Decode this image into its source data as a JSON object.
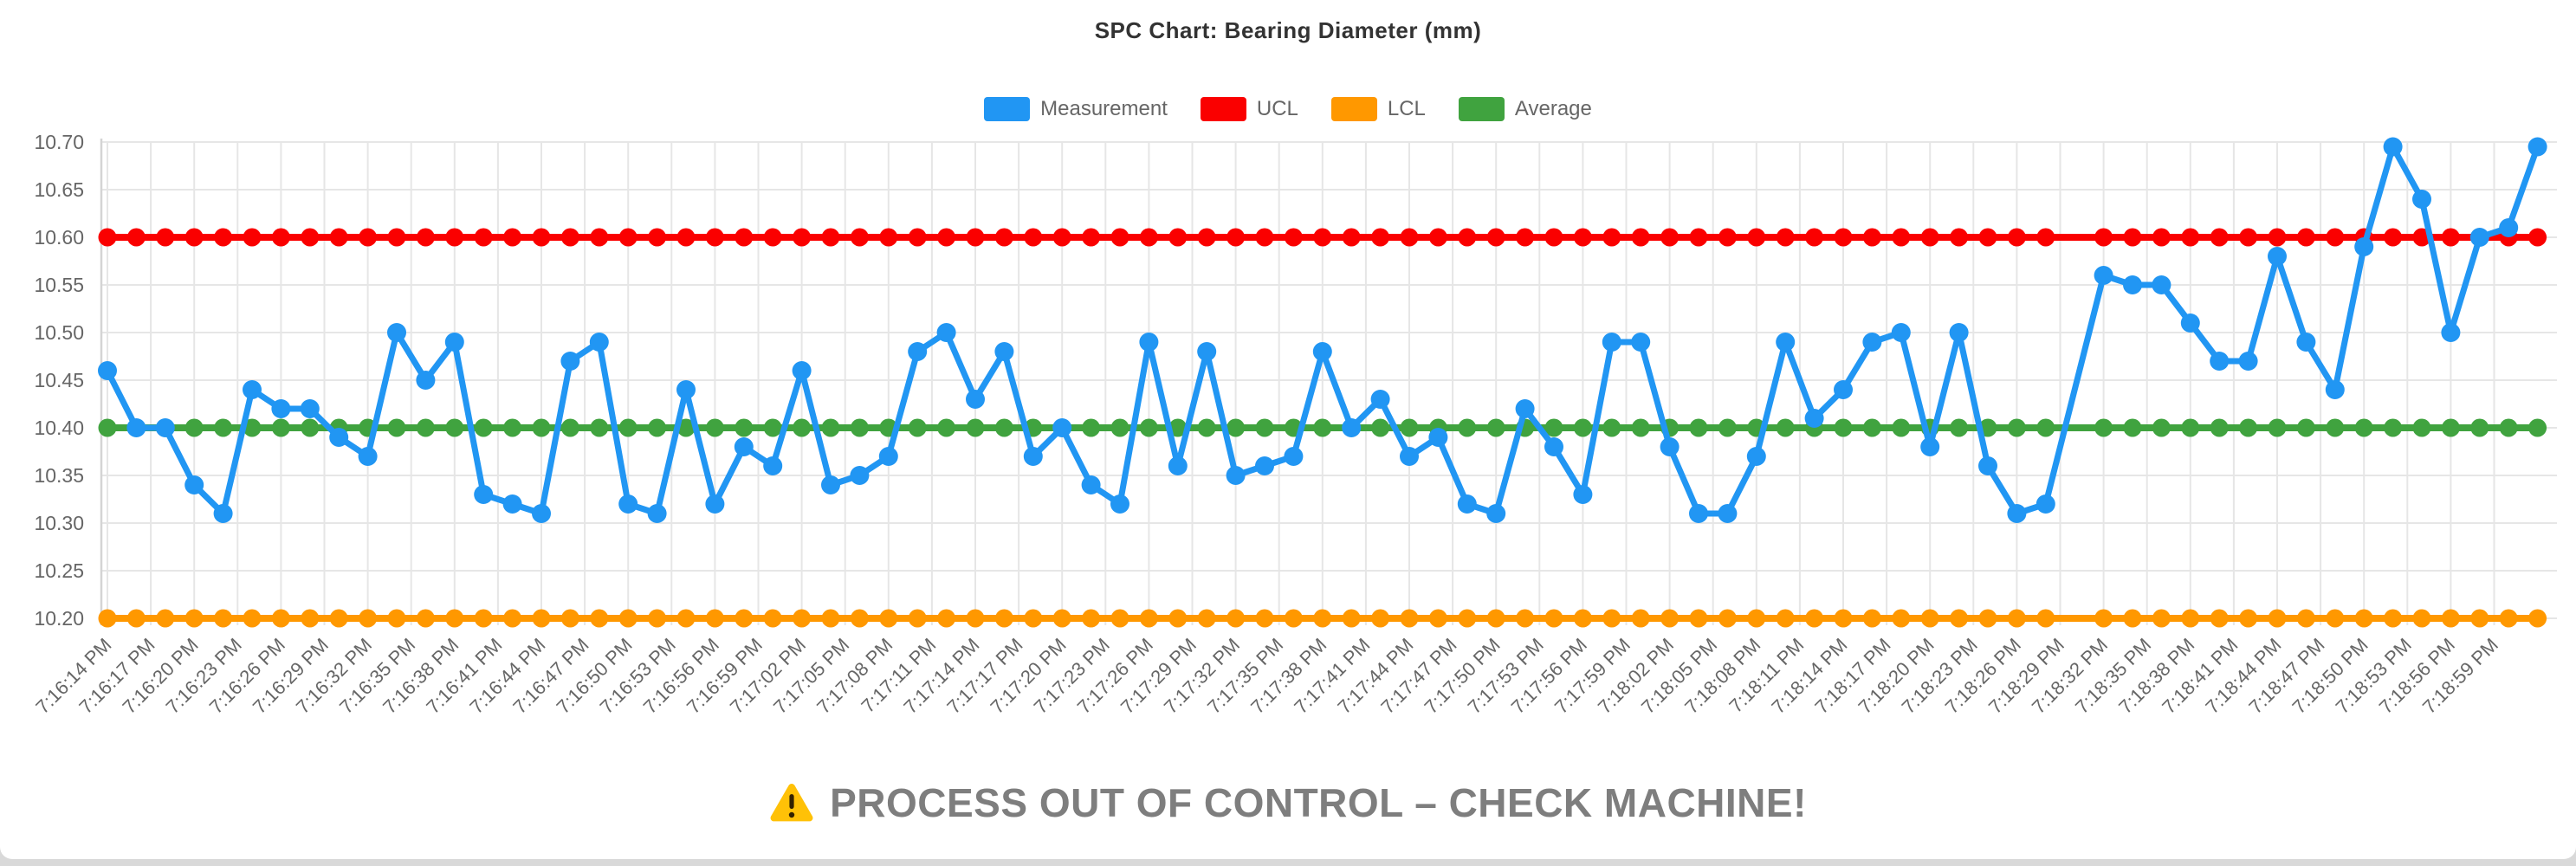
{
  "page": {
    "card_background": "#ffffff",
    "page_edge_color": "#d9d9d9"
  },
  "chart": {
    "title": "SPC Chart: Bearing Diameter (mm)",
    "legend": [
      {
        "label": "Measurement",
        "color": "#2196f3"
      },
      {
        "label": "UCL",
        "color": "#fa0000"
      },
      {
        "label": "LCL",
        "color": "#ff9800"
      },
      {
        "label": "Average",
        "color": "#40a33f"
      }
    ]
  },
  "chart_data": {
    "type": "line",
    "title": "SPC Chart: Bearing Diameter (mm)",
    "xlabel": "",
    "ylabel": "",
    "ylim": [
      10.2,
      10.7
    ],
    "y_ticks": [
      10.2,
      10.25,
      10.3,
      10.35,
      10.4,
      10.45,
      10.5,
      10.55,
      10.6,
      10.65,
      10.7
    ],
    "grid": true,
    "legend_position": "top",
    "x_tick_labels": [
      "7:16:14 PM",
      "7:16:17 PM",
      "7:16:20 PM",
      "7:16:23 PM",
      "7:16:26 PM",
      "7:16:29 PM",
      "7:16:32 PM",
      "7:16:35 PM",
      "7:16:38 PM",
      "7:16:41 PM",
      "7:16:44 PM",
      "7:16:47 PM",
      "7:16:50 PM",
      "7:16:53 PM",
      "7:16:56 PM",
      "7:16:59 PM",
      "7:17:02 PM",
      "7:17:05 PM",
      "7:17:08 PM",
      "7:17:11 PM",
      "7:17:14 PM",
      "7:17:17 PM",
      "7:17:20 PM",
      "7:17:23 PM",
      "7:17:26 PM",
      "7:17:29 PM",
      "7:17:32 PM",
      "7:17:35 PM",
      "7:17:38 PM",
      "7:17:41 PM",
      "7:17:44 PM",
      "7:17:47 PM",
      "7:17:50 PM",
      "7:17:53 PM",
      "7:17:56 PM",
      "7:17:59 PM",
      "7:18:02 PM",
      "7:18:05 PM",
      "7:18:08 PM",
      "7:18:11 PM",
      "7:18:14 PM",
      "7:18:17 PM",
      "7:18:20 PM",
      "7:18:23 PM",
      "7:18:26 PM",
      "7:18:29 PM",
      "7:18:32 PM",
      "7:18:35 PM",
      "7:18:38 PM",
      "7:18:41 PM",
      "7:18:44 PM",
      "7:18:47 PM",
      "7:18:50 PM",
      "7:18:53 PM",
      "7:18:56 PM",
      "7:18:59 PM"
    ],
    "x_ticks_every_seconds": 3,
    "measurement_sample_seconds": 2,
    "series": [
      {
        "name": "Measurement",
        "color": "#2196f3",
        "values": [
          10.46,
          10.4,
          10.4,
          10.34,
          10.31,
          10.44,
          10.42,
          10.42,
          10.39,
          10.37,
          10.5,
          10.45,
          10.49,
          10.33,
          10.32,
          10.31,
          10.47,
          10.49,
          10.32,
          10.31,
          10.44,
          10.32,
          10.38,
          10.36,
          10.46,
          10.34,
          10.35,
          10.37,
          10.48,
          10.5,
          10.43,
          10.48,
          10.37,
          10.4,
          10.34,
          10.32,
          10.49,
          10.36,
          10.48,
          10.35,
          10.36,
          10.37,
          10.48,
          10.4,
          10.43,
          10.37,
          10.39,
          10.32,
          10.31,
          10.42,
          10.38,
          10.33,
          10.49,
          10.49,
          10.38,
          10.31,
          10.31,
          10.37,
          10.49,
          10.41,
          10.44,
          10.49,
          10.5,
          10.38,
          10.5,
          10.36,
          10.31,
          10.32,
          null,
          10.56,
          10.55,
          10.55,
          10.51,
          10.47,
          10.47,
          10.58,
          10.49,
          10.44,
          10.59,
          10.695,
          10.64,
          10.5,
          10.6,
          10.61,
          10.695
        ]
      },
      {
        "name": "UCL",
        "color": "#fa0000",
        "constant": 10.6
      },
      {
        "name": "LCL",
        "color": "#ff9800",
        "constant": 10.2
      },
      {
        "name": "Average",
        "color": "#40a33f",
        "constant": 10.4
      }
    ]
  },
  "warning": {
    "icon": "warning-triangle",
    "icon_color": "#ffc107",
    "text": "PROCESS OUT OF CONTROL – CHECK MACHINE!"
  }
}
